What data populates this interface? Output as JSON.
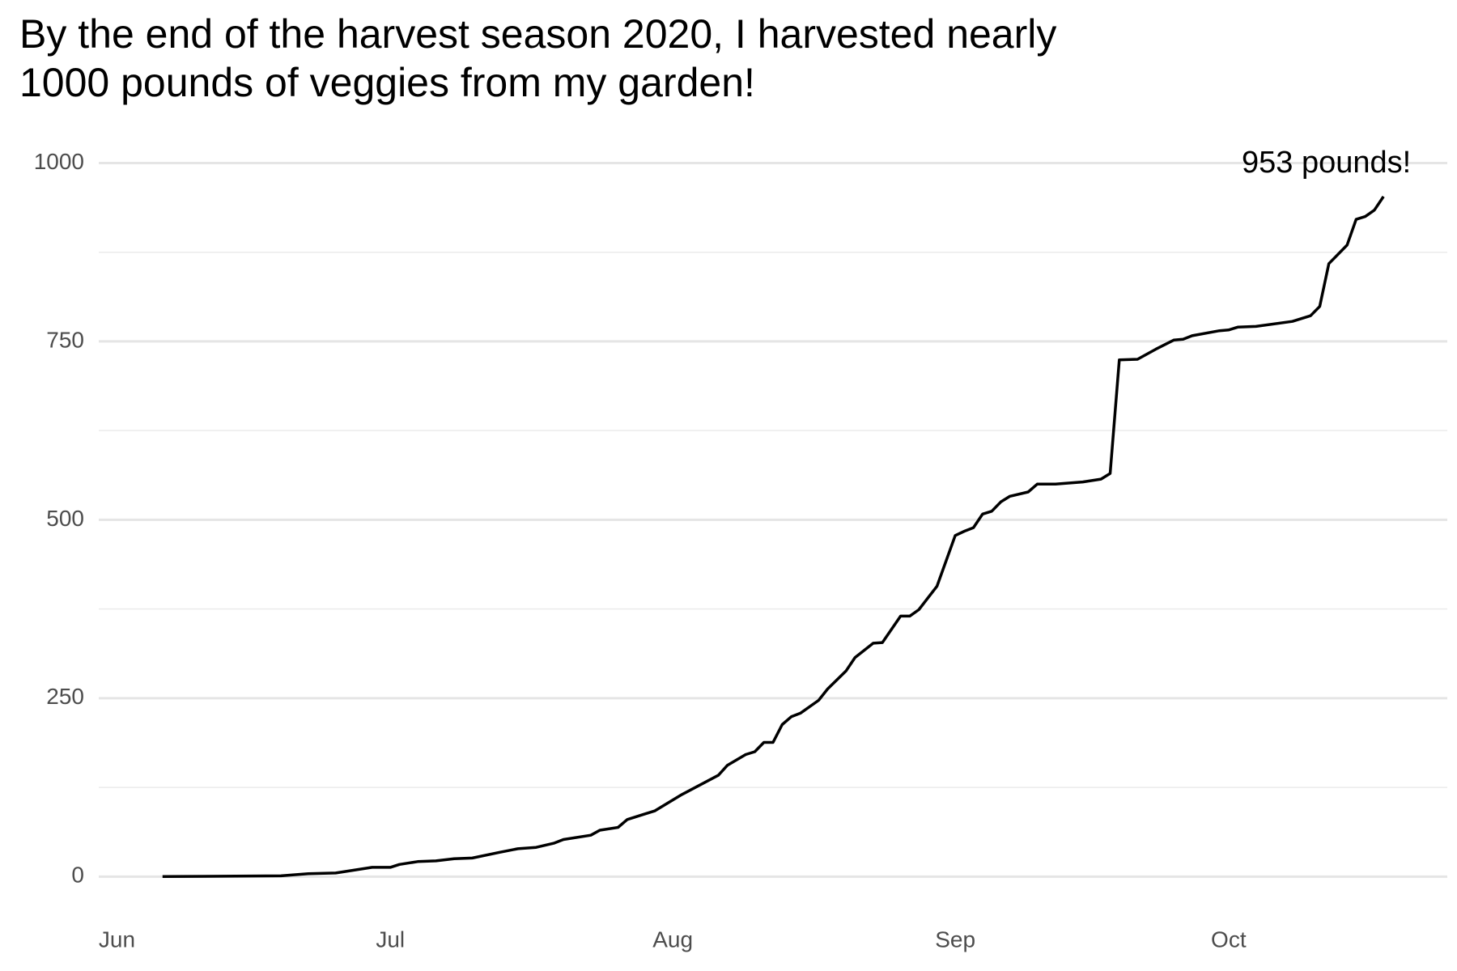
{
  "chart_data": {
    "type": "line",
    "title": "By the end of the harvest season 2020, I harvested nearly 1000 pounds of veggies from my garden!",
    "x": [
      5,
      18,
      21,
      24,
      26,
      28,
      30,
      31,
      33,
      35,
      37,
      39,
      42,
      44,
      46,
      48,
      49,
      52,
      53,
      55,
      56,
      58,
      59,
      62,
      66,
      67,
      69,
      70,
      71,
      72,
      73,
      74,
      75,
      77,
      78,
      80,
      81,
      83,
      84,
      86,
      87,
      88,
      90,
      92,
      93,
      94,
      95,
      96,
      97,
      98,
      100,
      101,
      103,
      106,
      108,
      109,
      110,
      112,
      114,
      116,
      117,
      118,
      121,
      122,
      123,
      125,
      129,
      131,
      132,
      133,
      135,
      136,
      137,
      138,
      139
    ],
    "series": [
      {
        "color": "#000000",
        "values": [
          0,
          1,
          4,
          5,
          9,
          13,
          13,
          17,
          21,
          22,
          25,
          26,
          34,
          39,
          41,
          47,
          52,
          58,
          65,
          69,
          80,
          88,
          92,
          115,
          142,
          156,
          171,
          175,
          188,
          188,
          213,
          224,
          229,
          247,
          263,
          288,
          307,
          327,
          328,
          365,
          365,
          374,
          407,
          478,
          484,
          489,
          508,
          512,
          525,
          533,
          539,
          550,
          550,
          553,
          557,
          565,
          724,
          725,
          739,
          752,
          753,
          758,
          765,
          766,
          770,
          771,
          778,
          786,
          799,
          859,
          885,
          921,
          925,
          934,
          953
        ]
      }
    ],
    "xlim": [
      -2,
      146
    ],
    "xticks": [
      {
        "value": 0,
        "label": "Jun"
      },
      {
        "value": 30,
        "label": "Jul"
      },
      {
        "value": 61,
        "label": "Aug"
      },
      {
        "value": 92,
        "label": "Sep"
      },
      {
        "value": 122,
        "label": "Oct"
      }
    ],
    "ylim": [
      -45,
      1030
    ],
    "yticks": [
      0,
      250,
      500,
      750,
      1000
    ],
    "yminorticks": [
      125,
      375,
      625,
      875
    ],
    "grid": true,
    "annotations": [
      {
        "text": "953 pounds!"
      }
    ]
  }
}
